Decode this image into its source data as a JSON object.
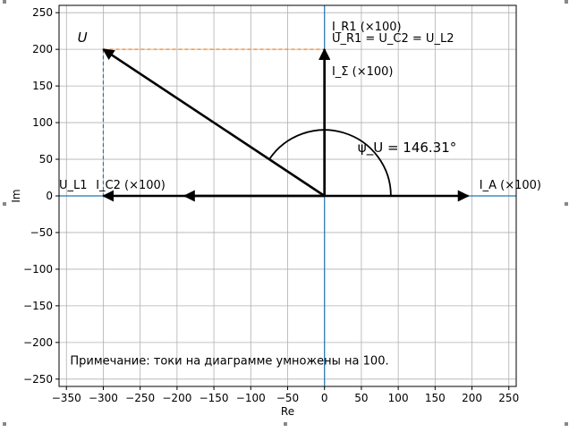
{
  "chart_data": {
    "type": "vector-diagram",
    "title": "",
    "xlabel": "Re",
    "ylabel": "Im",
    "xlim": [
      -360,
      260
    ],
    "ylim": [
      -260,
      260
    ],
    "xticks": [
      -350,
      -300,
      -250,
      -200,
      -150,
      -100,
      -50,
      0,
      50,
      100,
      150,
      200,
      250
    ],
    "yticks": [
      -250,
      -200,
      -150,
      -100,
      -50,
      0,
      50,
      100,
      150,
      200,
      250
    ],
    "grid": true,
    "vectors": [
      {
        "name": "U",
        "x": -300,
        "y": 200,
        "label": "U"
      },
      {
        "name": "I_A",
        "x": 195,
        "y": 0,
        "label": "I_A (×100)"
      },
      {
        "name": "I_R1",
        "x": 0,
        "y": 200,
        "label": "I_R1 (×100)"
      },
      {
        "name": "I_Sigma",
        "x": 0,
        "y": 200,
        "label": "I_Σ (×100)"
      },
      {
        "name": "I_C2",
        "x": -300,
        "y": 0,
        "label": "I_C2 (×100)"
      },
      {
        "name": "I_C2_arrow2",
        "x": -190,
        "y": 0,
        "label": ""
      }
    ],
    "projections": [
      {
        "from": [
          -300,
          200
        ],
        "to": [
          0,
          200
        ],
        "color": "#ff7f0e"
      },
      {
        "from": [
          -300,
          200
        ],
        "to": [
          -300,
          0
        ],
        "color": "#1f77b4"
      }
    ],
    "angle": {
      "label": "ψ_U = 146.31°",
      "value": 146.31,
      "radius": 90
    },
    "labels": {
      "U": "U",
      "I_A": "I_A (×100)",
      "I_R1": "I_R1 (×100)",
      "U_R1_eq": "U_R1 = U_C2 = U_L2",
      "I_Sigma": "I_Σ (×100)",
      "U_L1": "U_L1",
      "I_C2": "I_C2 (×100)",
      "psi": "ψ_U = 146.31°"
    },
    "note": "Примечание: токи на диаграмме умножены на 100.",
    "colors": {
      "vector": "#000000",
      "axis": "#1f77b4",
      "proj_h": "#ff7f0e",
      "proj_v": "#1f77b4",
      "grid": "#b0b0b0"
    }
  }
}
